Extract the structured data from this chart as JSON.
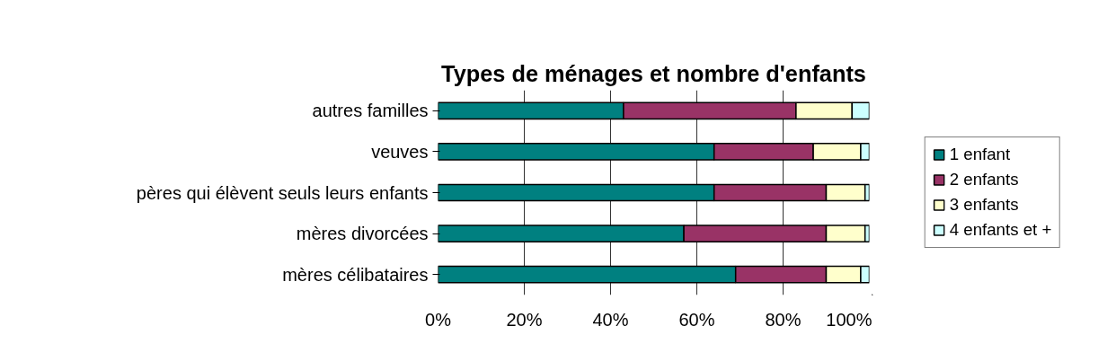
{
  "chart_data": {
    "type": "bar",
    "orientation": "horizontal",
    "stacked": true,
    "title": "Types de ménages et nombre d'enfants",
    "categories": [
      "autres familles",
      "veuves",
      "pères qui élèvent seuls leurs enfants",
      "mères divorcées",
      "mères célibataires"
    ],
    "series": [
      {
        "name": "1 enfant",
        "color": "#008080",
        "values": [
          43,
          64,
          64,
          57,
          69
        ]
      },
      {
        "name": "2 enfants",
        "color": "#993366",
        "values": [
          40,
          23,
          26,
          33,
          21
        ]
      },
      {
        "name": "3 enfants",
        "color": "#ffffcc",
        "values": [
          13,
          11,
          9,
          9,
          8
        ]
      },
      {
        "name": "4 enfants et +",
        "color": "#ccffff",
        "values": [
          4,
          2,
          1,
          1,
          2
        ]
      }
    ],
    "xlim": [
      0,
      100
    ],
    "xticks": [
      {
        "value": 0,
        "label": "0%"
      },
      {
        "value": 20,
        "label": "20%"
      },
      {
        "value": 40,
        "label": "40%"
      },
      {
        "value": 60,
        "label": "60%"
      },
      {
        "value": 80,
        "label": "80%"
      },
      {
        "value": 100,
        "label": "100%"
      }
    ],
    "grid": "x",
    "legend": "right"
  }
}
